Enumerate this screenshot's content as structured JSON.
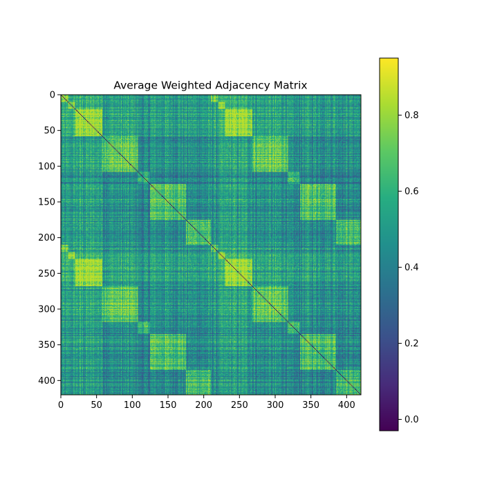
{
  "chart_data": {
    "type": "heatmap",
    "title": "Average Weighted Adjacency Matrix",
    "xlabel": "",
    "ylabel": "",
    "size": 420,
    "xlim": [
      0,
      420
    ],
    "ylim": [
      420,
      0
    ],
    "x_ticks": [
      0,
      50,
      100,
      150,
      200,
      250,
      300,
      350,
      400
    ],
    "y_ticks": [
      0,
      50,
      100,
      150,
      200,
      250,
      300,
      350,
      400
    ],
    "x_tick_labels": [
      "0",
      "50",
      "100",
      "150",
      "200",
      "250",
      "300",
      "350",
      "400"
    ],
    "y_tick_labels": [
      "0",
      "50",
      "100",
      "150",
      "200",
      "250",
      "300",
      "350",
      "400"
    ],
    "colormap": "viridis",
    "diagonal_value": 0.0,
    "colorbar": {
      "range": [
        -0.03,
        0.95
      ],
      "ticks": [
        0.0,
        0.2,
        0.4,
        0.6,
        0.8
      ],
      "tick_labels": [
        "0.0",
        "0.2",
        "0.4",
        "0.6",
        "0.8"
      ]
    },
    "block_structure": {
      "period": 210,
      "block_means": [
        {
          "range": [
            0,
            10
          ],
          "value": 0.62
        },
        {
          "range": [
            10,
            20
          ],
          "value": 0.66
        },
        {
          "range": [
            20,
            58
          ],
          "value": 0.72
        },
        {
          "range": [
            58,
            108
          ],
          "value": 0.6
        },
        {
          "range": [
            108,
            125
          ],
          "value": 0.46
        },
        {
          "range": [
            125,
            175
          ],
          "value": 0.58
        },
        {
          "range": [
            175,
            210
          ],
          "value": 0.55
        }
      ],
      "typical_range": [
        0.25,
        0.85
      ]
    }
  }
}
